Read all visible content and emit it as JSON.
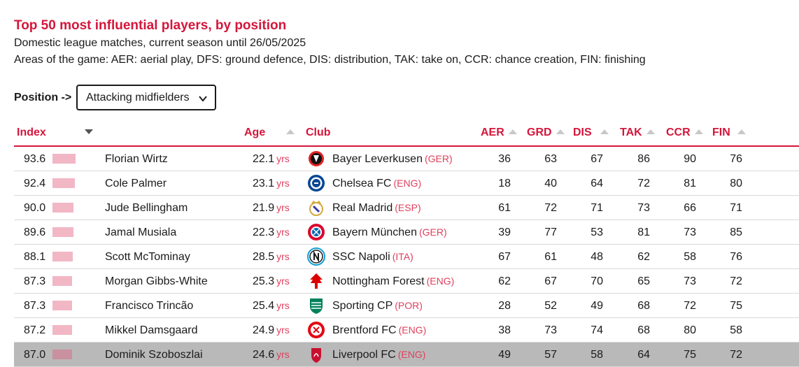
{
  "header": {
    "title": "Top 50 most influential players, by position",
    "subtitle": "Domestic league matches, current season until 26/05/2025",
    "areas": "Areas of the game: AER: aerial play, DFS: ground defence, DIS: distribution, TAK: take on, CCR: chance creation, FIN: finishing"
  },
  "position_filter": {
    "label": "Position ->",
    "selected": "Attacking midfielders"
  },
  "columns": {
    "index": "Index",
    "age": "Age",
    "club": "Club",
    "aer": "AER",
    "grd": "GRD",
    "dis": "DIS",
    "tak": "TAK",
    "ccr": "CCR",
    "fin": "FIN"
  },
  "colors": {
    "accent": "#d4163b",
    "bar": "#f2b7c5",
    "highlight_row": "#b9b9b9"
  },
  "rows": [
    {
      "index": "93.6",
      "index_level": 93.6,
      "name": "Florian Wirtz",
      "age": "22.1",
      "yrs": "yrs",
      "club": "Bayer Leverkusen",
      "country": "(GER)",
      "logo": "bayer-leverkusen-logo",
      "aer": "36",
      "grd": "63",
      "dis": "67",
      "tak": "86",
      "ccr": "90",
      "fin": "76"
    },
    {
      "index": "92.4",
      "index_level": 92.4,
      "name": "Cole Palmer",
      "age": "23.1",
      "yrs": "yrs",
      "club": "Chelsea FC",
      "country": "(ENG)",
      "logo": "chelsea-logo",
      "aer": "18",
      "grd": "40",
      "dis": "64",
      "tak": "72",
      "ccr": "81",
      "fin": "80"
    },
    {
      "index": "90.0",
      "index_level": 90.0,
      "name": "Jude Bellingham",
      "age": "21.9",
      "yrs": "yrs",
      "club": "Real Madrid",
      "country": "(ESP)",
      "logo": "real-madrid-logo",
      "aer": "61",
      "grd": "72",
      "dis": "71",
      "tak": "73",
      "ccr": "66",
      "fin": "71"
    },
    {
      "index": "89.6",
      "index_level": 89.6,
      "name": "Jamal Musiala",
      "age": "22.3",
      "yrs": "yrs",
      "club": "Bayern München",
      "country": "(GER)",
      "logo": "bayern-munich-logo",
      "aer": "39",
      "grd": "77",
      "dis": "53",
      "tak": "81",
      "ccr": "73",
      "fin": "85"
    },
    {
      "index": "88.1",
      "index_level": 88.1,
      "name": "Scott McTominay",
      "age": "28.5",
      "yrs": "yrs",
      "club": "SSC Napoli",
      "country": "(ITA)",
      "logo": "napoli-logo",
      "aer": "67",
      "grd": "61",
      "dis": "48",
      "tak": "62",
      "ccr": "58",
      "fin": "76"
    },
    {
      "index": "87.3",
      "index_level": 87.3,
      "name": "Morgan Gibbs-White",
      "age": "25.3",
      "yrs": "yrs",
      "club": "Nottingham Forest",
      "country": "(ENG)",
      "logo": "nottingham-forest-logo",
      "aer": "62",
      "grd": "67",
      "dis": "70",
      "tak": "65",
      "ccr": "73",
      "fin": "72"
    },
    {
      "index": "87.3",
      "index_level": 87.3,
      "name": "Francisco Trincão",
      "age": "25.4",
      "yrs": "yrs",
      "club": "Sporting CP",
      "country": "(POR)",
      "logo": "sporting-cp-logo",
      "aer": "28",
      "grd": "52",
      "dis": "49",
      "tak": "68",
      "ccr": "72",
      "fin": "75"
    },
    {
      "index": "87.2",
      "index_level": 87.2,
      "name": "Mikkel Damsgaard",
      "age": "24.9",
      "yrs": "yrs",
      "club": "Brentford FC",
      "country": "(ENG)",
      "logo": "brentford-logo",
      "aer": "38",
      "grd": "73",
      "dis": "74",
      "tak": "68",
      "ccr": "80",
      "fin": "58"
    },
    {
      "index": "87.0",
      "index_level": 87.0,
      "name": "Dominik Szoboszlai",
      "age": "24.6",
      "yrs": "yrs",
      "club": "Liverpool FC",
      "country": "(ENG)",
      "logo": "liverpool-logo",
      "aer": "49",
      "grd": "57",
      "dis": "58",
      "tak": "64",
      "ccr": "75",
      "fin": "72",
      "highlighted": true
    }
  ]
}
